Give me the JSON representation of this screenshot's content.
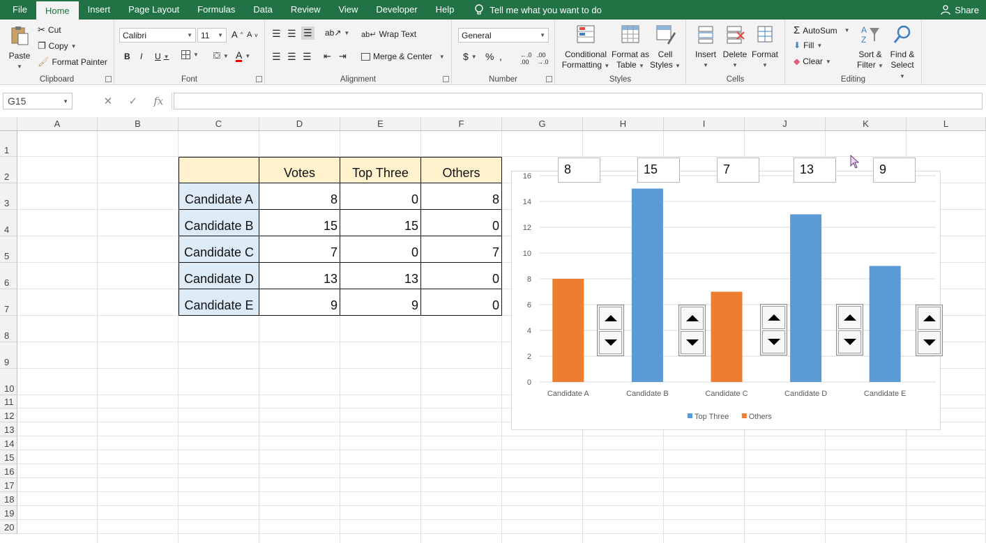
{
  "menu": {
    "tabs": [
      "File",
      "Home",
      "Insert",
      "Page Layout",
      "Formulas",
      "Data",
      "Review",
      "View",
      "Developer",
      "Help"
    ],
    "active_tab": "Home",
    "tell_me": "Tell me what you want to do",
    "share": "Share"
  },
  "ribbon": {
    "clipboard": {
      "label": "Clipboard",
      "paste": "Paste",
      "cut": "Cut",
      "copy": "Copy",
      "format_painter": "Format Painter"
    },
    "font": {
      "label": "Font",
      "family": "Calibri",
      "size": "11"
    },
    "alignment": {
      "label": "Alignment",
      "wrap": "Wrap Text",
      "merge": "Merge & Center"
    },
    "number": {
      "label": "Number",
      "format": "General"
    },
    "styles": {
      "label": "Styles",
      "conditional": "Conditional",
      "conditional2": "Formatting",
      "format_as": "Format as",
      "format_as2": "Table",
      "cell": "Cell",
      "cell2": "Styles"
    },
    "cells": {
      "label": "Cells",
      "insert": "Insert",
      "delete": "Delete",
      "format": "Format"
    },
    "editing": {
      "label": "Editing",
      "autosum": "AutoSum",
      "fill": "Fill",
      "clear": "Clear",
      "sort": "Sort &",
      "sort2": "Filter",
      "find": "Find &",
      "find2": "Select"
    }
  },
  "formula_bar": {
    "name_box": "G15",
    "fx": "fx",
    "value": ""
  },
  "columns": [
    "A",
    "B",
    "C",
    "D",
    "E",
    "F",
    "G",
    "H",
    "I",
    "J",
    "K",
    "L"
  ],
  "rows": [
    "1",
    "2",
    "3",
    "4",
    "5",
    "6",
    "7",
    "8",
    "9",
    "10",
    "11",
    "12",
    "13",
    "14",
    "15",
    "16",
    "17",
    "18",
    "19",
    "20"
  ],
  "table": {
    "headers": [
      "",
      "Votes",
      "Top Three",
      "Others"
    ],
    "rows": [
      {
        "name": "Candidate A",
        "votes": "8",
        "top": "0",
        "others": "8"
      },
      {
        "name": "Candidate B",
        "votes": "15",
        "top": "15",
        "others": "0"
      },
      {
        "name": "Candidate C",
        "votes": "7",
        "top": "0",
        "others": "7"
      },
      {
        "name": "Candidate D",
        "votes": "13",
        "top": "13",
        "others": "0"
      },
      {
        "name": "Candidate E",
        "votes": "9",
        "top": "9",
        "others": "0"
      }
    ]
  },
  "value_boxes": [
    "8",
    "15",
    "7",
    "13",
    "9"
  ],
  "chart_data": {
    "type": "bar",
    "categories": [
      "Candidate A",
      "Candidate B",
      "Candidate C",
      "Candidate D",
      "Candidate E"
    ],
    "series": [
      {
        "name": "Top Three",
        "values": [
          0,
          15,
          0,
          13,
          9
        ],
        "color": "#5b9bd5"
      },
      {
        "name": "Others",
        "values": [
          8,
          0,
          7,
          0,
          0
        ],
        "color": "#ed7d31"
      }
    ],
    "ylim": [
      0,
      16
    ],
    "yticks": [
      "0",
      "2",
      "4",
      "6",
      "8",
      "10",
      "12",
      "14",
      "16"
    ],
    "grid": true,
    "legend": "bottom",
    "stacked": true
  }
}
